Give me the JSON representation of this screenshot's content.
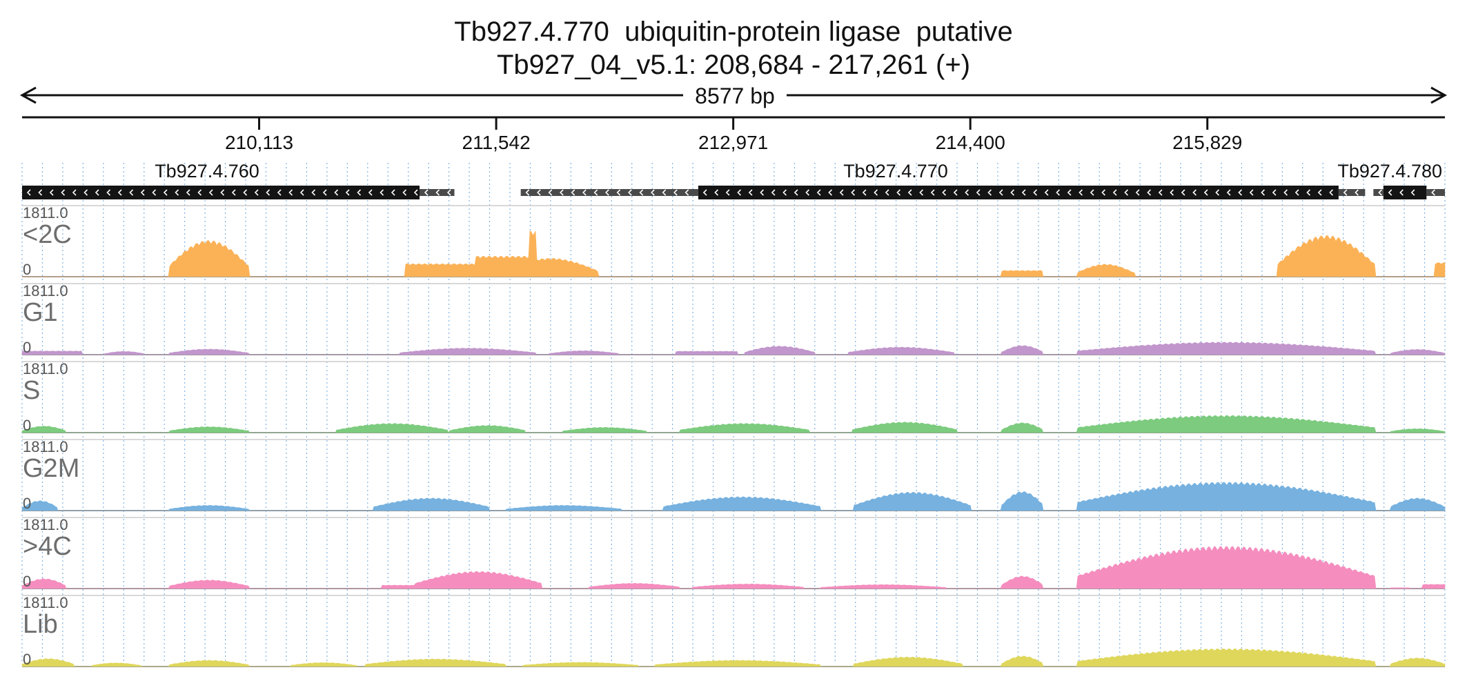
{
  "header": {
    "title": "Tb927.4.770  ubiquitin-protein ligase  putative",
    "subtitle": "Tb927_04_v5.1: 208,684 - 217,261 (+)",
    "length_label": "8577 bp"
  },
  "chart_data": {
    "type": "area",
    "region": {
      "chromosome": "Tb927_04_v5.1",
      "start": 208684,
      "end": 217261,
      "strand": "+"
    },
    "axis_ticks": [
      {
        "position": 210113,
        "label": "210,113"
      },
      {
        "position": 211542,
        "label": "211,542"
      },
      {
        "position": 212971,
        "label": "212,971"
      },
      {
        "position": 214400,
        "label": "214,400"
      },
      {
        "position": 215829,
        "label": "215,829"
      }
    ],
    "genes": [
      {
        "name": "Tb927.4.760",
        "strand": "-",
        "start": 208684,
        "end": 211080,
        "cds": [
          [
            208684,
            211080
          ]
        ],
        "utr": [
          [
            211080,
            211290
          ]
        ]
      },
      {
        "name": "Tb927.4.770",
        "strand": "-",
        "start": 211690,
        "end": 216650,
        "cds": [
          [
            212760,
            216620
          ]
        ],
        "utr": [
          [
            211690,
            212760
          ],
          [
            216620,
            216780
          ]
        ]
      },
      {
        "name": "Tb927.4.780",
        "strand": "-",
        "start": 217160,
        "end": 217261,
        "cds": [
          [
            216890,
            217150
          ]
        ],
        "utr": [
          [
            216830,
            216890
          ],
          [
            217150,
            217261
          ]
        ]
      }
    ],
    "tracks": [
      {
        "name": "<2C",
        "color": "#FBB257",
        "ymax": "1811.0",
        "ymin": "0",
        "segments": [
          [
            209570,
            210050,
            1100,
            "dome"
          ],
          [
            210990,
            211420,
            460,
            "flat"
          ],
          [
            211420,
            211780,
            1380,
            "spike"
          ],
          [
            211580,
            212160,
            560,
            "dome"
          ],
          [
            214590,
            214840,
            220,
            "flat"
          ],
          [
            215040,
            215390,
            380,
            "dome"
          ],
          [
            216250,
            216840,
            1250,
            "dome"
          ],
          [
            217200,
            217261,
            500,
            "flat"
          ]
        ]
      },
      {
        "name": "G1",
        "color": "#C196CC",
        "ymax": "1811.0",
        "ymin": "0",
        "segments": [
          [
            208684,
            209050,
            130,
            "flat"
          ],
          [
            209180,
            209420,
            100,
            "dome"
          ],
          [
            209570,
            210050,
            170,
            "dome"
          ],
          [
            210960,
            211780,
            200,
            "dome"
          ],
          [
            211860,
            212280,
            120,
            "dome"
          ],
          [
            212620,
            213000,
            120,
            "flat"
          ],
          [
            213040,
            213460,
            260,
            "dome"
          ],
          [
            213660,
            214300,
            230,
            "dome"
          ],
          [
            214590,
            214840,
            280,
            "dome"
          ],
          [
            215040,
            216840,
            380,
            "dome"
          ],
          [
            216930,
            217261,
            160,
            "dome"
          ]
        ]
      },
      {
        "name": "S",
        "color": "#7CCB7E",
        "ymax": "1811.0",
        "ymin": "0",
        "segments": [
          [
            208684,
            208950,
            200,
            "dome"
          ],
          [
            209570,
            210050,
            180,
            "dome"
          ],
          [
            210580,
            211250,
            280,
            "dome"
          ],
          [
            211260,
            211720,
            220,
            "dome"
          ],
          [
            211940,
            212450,
            160,
            "dome"
          ],
          [
            212650,
            213430,
            280,
            "dome"
          ],
          [
            213690,
            214320,
            320,
            "dome"
          ],
          [
            214590,
            214840,
            300,
            "dome"
          ],
          [
            215040,
            216840,
            520,
            "dome"
          ],
          [
            216930,
            217261,
            120,
            "dome"
          ]
        ]
      },
      {
        "name": "G2M",
        "color": "#76B1DF",
        "ymax": "1811.0",
        "ymin": "0",
        "segments": [
          [
            208684,
            208900,
            300,
            "dome"
          ],
          [
            209570,
            210050,
            160,
            "dome"
          ],
          [
            210800,
            211500,
            380,
            "dome"
          ],
          [
            211600,
            212300,
            160,
            "dome"
          ],
          [
            212550,
            213500,
            420,
            "dome"
          ],
          [
            213700,
            214400,
            560,
            "dome"
          ],
          [
            214590,
            214840,
            580,
            "dome"
          ],
          [
            215040,
            216840,
            860,
            "dome"
          ],
          [
            216930,
            217261,
            380,
            "dome"
          ]
        ]
      },
      {
        "name": ">4C",
        "color": "#F58DBE",
        "ymax": "1811.0",
        "ymin": "0",
        "segments": [
          [
            208684,
            208950,
            300,
            "dome"
          ],
          [
            209570,
            210050,
            260,
            "dome"
          ],
          [
            210850,
            211050,
            120,
            "flat"
          ],
          [
            211050,
            211820,
            520,
            "dome"
          ],
          [
            212100,
            212650,
            160,
            "dome"
          ],
          [
            212720,
            213400,
            140,
            "dome"
          ],
          [
            213500,
            214250,
            120,
            "dome"
          ],
          [
            214590,
            214840,
            380,
            "dome"
          ],
          [
            215040,
            216840,
            1280,
            "dome"
          ],
          [
            216930,
            217050,
            30,
            "flat"
          ],
          [
            217120,
            217261,
            150,
            "flat"
          ]
        ]
      },
      {
        "name": "Lib",
        "color": "#DFD75C",
        "ymax": "1811.0",
        "ymin": "0",
        "segments": [
          [
            208684,
            209000,
            240,
            "dome"
          ],
          [
            209100,
            209400,
            110,
            "dome"
          ],
          [
            209570,
            210050,
            190,
            "dome"
          ],
          [
            210300,
            210700,
            120,
            "dome"
          ],
          [
            210750,
            211600,
            230,
            "dome"
          ],
          [
            211700,
            212400,
            130,
            "dome"
          ],
          [
            212500,
            213500,
            190,
            "dome"
          ],
          [
            213700,
            214350,
            290,
            "dome"
          ],
          [
            214590,
            214840,
            320,
            "dome"
          ],
          [
            215040,
            216840,
            540,
            "dome"
          ],
          [
            216930,
            217261,
            260,
            "dome"
          ]
        ]
      }
    ]
  }
}
